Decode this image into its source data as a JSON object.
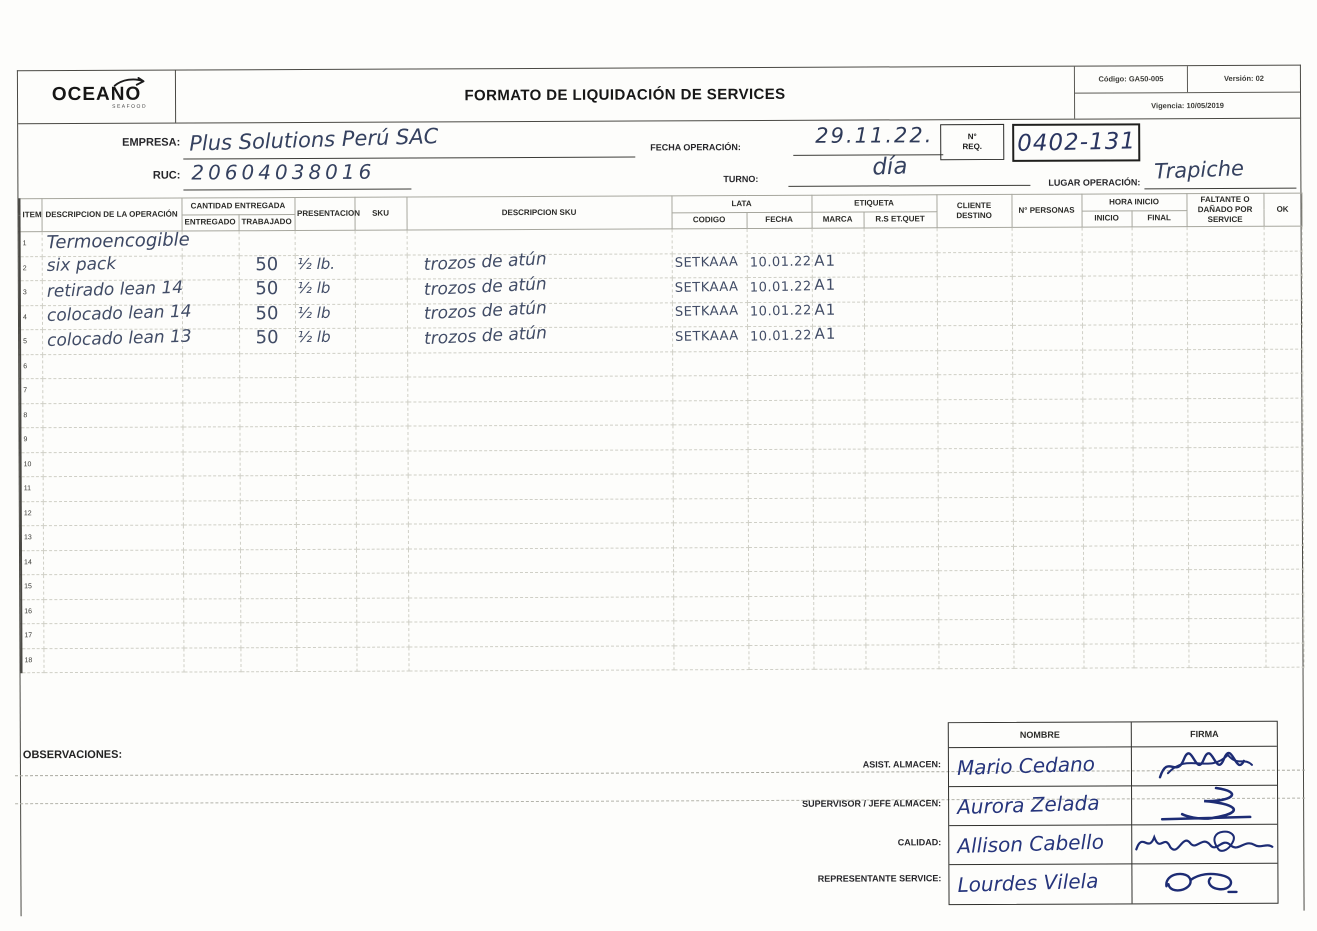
{
  "meta": {
    "codigo": "Código: GA50-005",
    "version": "Versión: 02",
    "vigencia": "Vigencia: 10/05/2019"
  },
  "header": {
    "logo_text": "OCEANO",
    "logo_sub": "SEAFOOD",
    "title": "FORMATO DE LIQUIDACIÓN DE SERVICES"
  },
  "info": {
    "empresa_label": "EMPRESA:",
    "empresa_value": "Plus Solutions Perú SAC",
    "ruc_label": "RUC:",
    "ruc_value": "20604038016",
    "fecha_operacion_label": "FECHA OPERACIÓN:",
    "fecha_operacion_value": "29.11.22.",
    "nreq_label_line1": "N°",
    "nreq_label_line2": "REQ.",
    "nreq_value": "0402-131",
    "turno_label": "TURNO:",
    "turno_value": "día",
    "lugar_label": "LUGAR OPERACIÓN:",
    "lugar_value": "Trapiche"
  },
  "table": {
    "headers": {
      "item": "ITEM",
      "descripcion_operacion": "DESCRIPCION DE LA OPERACIÓN",
      "cantidad_entregada": "CANTIDAD ENTREGADA",
      "entregado": "ENTREGADO",
      "trabajado": "TRABAJADO",
      "presentacion": "PRESENTACION",
      "sku": "SKU",
      "descripcion_sku": "DESCRIPCION SKU",
      "lata": "LATA",
      "codigo": "CODIGO",
      "fecha": "FECHA",
      "etiqueta": "ETIQUETA",
      "marca": "MARCA",
      "rs_etiquet": "R.S ET.QUET",
      "cliente_destino": "CLIENTE DESTINO",
      "n_personas": "N° PERSONAS",
      "hora_inicio": "HORA INICIO",
      "inicio": "INICIO",
      "final": "FINAL",
      "faltante": "FALTANTE O DAÑADO POR SERVICE",
      "ok": "OK"
    },
    "rows": [
      {
        "num": "1",
        "descripcion": "Termoencogible"
      },
      {
        "num": "2",
        "descripcion": "six pack",
        "trabajado": "50",
        "presentacion": "½ lb.",
        "descripcion_sku": "trozos de atún",
        "codigo": "SETKAAA",
        "fecha": "10.01.22",
        "marca": "A1"
      },
      {
        "num": "3",
        "descripcion": "retirado lean 14",
        "trabajado": "50",
        "presentacion": "½ lb",
        "descripcion_sku": "trozos de atún",
        "codigo": "SETKAAA",
        "fecha": "10.01.22",
        "marca": "A1"
      },
      {
        "num": "4",
        "descripcion": "colocado lean 14",
        "trabajado": "50",
        "presentacion": "½ lb",
        "descripcion_sku": "trozos de atún",
        "codigo": "SETKAAA",
        "fecha": "10.01.22",
        "marca": "A1"
      },
      {
        "num": "5",
        "descripcion": "colocado lean 13",
        "trabajado": "50",
        "presentacion": "½ lb",
        "descripcion_sku": "trozos de atún",
        "codigo": "SETKAAA",
        "fecha": "10.01.22",
        "marca": "A1"
      },
      {
        "num": "6"
      },
      {
        "num": "7"
      },
      {
        "num": "8"
      },
      {
        "num": "9"
      },
      {
        "num": "10"
      },
      {
        "num": "11"
      },
      {
        "num": "12"
      },
      {
        "num": "13"
      },
      {
        "num": "14"
      },
      {
        "num": "15"
      },
      {
        "num": "16"
      },
      {
        "num": "17"
      },
      {
        "num": "18"
      }
    ]
  },
  "observaciones": {
    "label": "OBSERVACIONES:"
  },
  "signatures": {
    "nombre_header": "NOMBRE",
    "firma_header": "FIRMA",
    "rows": [
      {
        "label": "ASIST. ALMACEN:",
        "nombre": "Mario Cedano"
      },
      {
        "label": "SUPERVISOR / JEFE ALMACEN:",
        "nombre": "Aurora Zelada"
      },
      {
        "label": "CALIDAD:",
        "nombre": "Allison Cabello"
      },
      {
        "label": "REPRESENTANTE SERVICE:",
        "nombre": "Lourdes Vilela"
      }
    ]
  },
  "colors": {
    "ink_table": "#414c66",
    "ink_signature": "#26357c",
    "grid_line": "#cfcfc6"
  }
}
